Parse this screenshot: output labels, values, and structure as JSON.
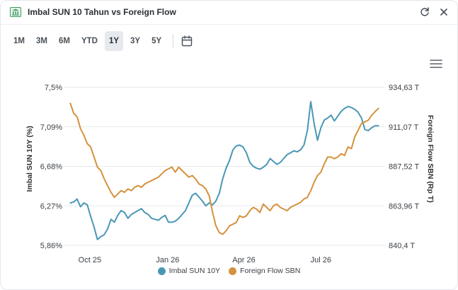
{
  "widget": {
    "title": "Imbal SUN 10 Tahun vs Foreign Flow"
  },
  "icons": {
    "app": "bank-icon",
    "refresh": "refresh-icon",
    "close": "close-icon",
    "calendar": "calendar-icon",
    "menu": "hamburger-menu-icon"
  },
  "ranges": [
    {
      "label": "1M",
      "active": false
    },
    {
      "label": "3M",
      "active": false
    },
    {
      "label": "6M",
      "active": false
    },
    {
      "label": "YTD",
      "active": false
    },
    {
      "label": "1Y",
      "active": true
    },
    {
      "label": "3Y",
      "active": false
    },
    {
      "label": "5Y",
      "active": false
    }
  ],
  "colors": {
    "yield": "#4a97b5",
    "flow": "#d5923d",
    "grid": "#e6e8eb"
  },
  "chart_data": {
    "type": "line",
    "grid": true,
    "legend_position": "bottom-center",
    "x_ticks": [
      "Oct 25",
      "Jan 26",
      "Apr 26",
      "Jul 26"
    ],
    "y_left": {
      "label": "Imbal SUN 10Y (%)",
      "ticks": [
        "7,5%",
        "7,09%",
        "6,68%",
        "6,27%",
        "5,86%"
      ],
      "range": [
        5.86,
        7.5
      ]
    },
    "y_right": {
      "label": "Foreign Flow SBN (Rp T)",
      "ticks": [
        "934,63 T",
        "911,07 T",
        "887,52 T",
        "863,96 T",
        "840,4 T"
      ],
      "range": [
        840.4,
        934.63
      ]
    },
    "series": [
      {
        "name": "Imbal SUN 10Y",
        "axis": "left",
        "x": [
          "2025-09-22",
          "2025-09-26",
          "2025-09-30",
          "2025-10-04",
          "2025-10-08",
          "2025-10-12",
          "2025-10-16",
          "2025-10-20",
          "2025-10-24",
          "2025-10-28",
          "2025-11-01",
          "2025-11-05",
          "2025-11-09",
          "2025-11-13",
          "2025-11-17",
          "2025-11-21",
          "2025-11-25",
          "2025-11-29",
          "2025-12-03",
          "2025-12-07",
          "2025-12-11",
          "2025-12-15",
          "2025-12-19",
          "2025-12-23",
          "2025-12-27",
          "2025-12-31",
          "2026-01-04",
          "2026-01-08",
          "2026-01-12",
          "2026-01-16",
          "2026-01-20",
          "2026-01-24",
          "2026-01-28",
          "2026-02-01",
          "2026-02-05",
          "2026-02-09",
          "2026-02-13",
          "2026-02-17",
          "2026-02-21",
          "2026-02-25",
          "2026-03-01",
          "2026-03-05",
          "2026-03-09",
          "2026-03-13",
          "2026-03-17",
          "2026-03-21",
          "2026-03-25",
          "2026-03-29",
          "2026-04-02",
          "2026-04-06",
          "2026-04-10",
          "2026-04-14",
          "2026-04-18",
          "2026-04-22",
          "2026-04-26",
          "2026-04-30",
          "2026-05-04",
          "2026-05-08",
          "2026-05-12",
          "2026-05-16",
          "2026-05-20",
          "2026-05-24",
          "2026-05-28",
          "2026-06-01",
          "2026-06-05",
          "2026-06-09",
          "2026-06-13",
          "2026-06-17",
          "2026-06-21",
          "2026-06-25",
          "2026-06-29",
          "2026-07-03",
          "2026-07-07",
          "2026-07-11",
          "2026-07-15",
          "2026-07-19",
          "2026-07-23",
          "2026-07-27",
          "2026-07-31",
          "2026-08-04",
          "2026-08-08",
          "2026-08-12",
          "2026-08-16",
          "2026-08-20",
          "2026-08-24",
          "2026-08-28",
          "2026-09-01",
          "2026-09-05",
          "2026-09-09",
          "2026-09-13",
          "2026-09-17",
          "2026-09-21"
        ],
        "values": [
          6.3,
          6.31,
          6.34,
          6.26,
          6.3,
          6.28,
          6.16,
          6.05,
          5.92,
          5.95,
          5.97,
          6.03,
          6.13,
          6.1,
          6.17,
          6.22,
          6.2,
          6.14,
          6.18,
          6.2,
          6.22,
          6.24,
          6.2,
          6.18,
          6.14,
          6.13,
          6.12,
          6.15,
          6.17,
          6.1,
          6.1,
          6.11,
          6.14,
          6.18,
          6.22,
          6.3,
          6.38,
          6.4,
          6.36,
          6.32,
          6.27,
          6.3,
          6.28,
          6.32,
          6.4,
          6.55,
          6.66,
          6.74,
          6.85,
          6.89,
          6.9,
          6.88,
          6.82,
          6.72,
          6.68,
          6.66,
          6.65,
          6.67,
          6.7,
          6.76,
          6.73,
          6.7,
          6.72,
          6.76,
          6.8,
          6.82,
          6.84,
          6.83,
          6.85,
          6.9,
          7.05,
          7.35,
          7.12,
          6.95,
          7.08,
          7.16,
          7.18,
          7.21,
          7.15,
          7.2,
          7.25,
          7.28,
          7.3,
          7.29,
          7.27,
          7.24,
          7.18,
          7.06,
          7.05,
          7.08,
          7.1,
          7.1
        ]
      },
      {
        "name": "Foreign Flow SBN",
        "axis": "right",
        "x": [
          "2025-09-22",
          "2025-09-26",
          "2025-09-30",
          "2025-10-04",
          "2025-10-08",
          "2025-10-12",
          "2025-10-16",
          "2025-10-20",
          "2025-10-24",
          "2025-10-28",
          "2025-11-01",
          "2025-11-05",
          "2025-11-09",
          "2025-11-13",
          "2025-11-17",
          "2025-11-21",
          "2025-11-25",
          "2025-11-29",
          "2025-12-03",
          "2025-12-07",
          "2025-12-11",
          "2025-12-15",
          "2025-12-19",
          "2025-12-23",
          "2025-12-27",
          "2025-12-31",
          "2026-01-04",
          "2026-01-08",
          "2026-01-12",
          "2026-01-16",
          "2026-01-20",
          "2026-01-24",
          "2026-01-28",
          "2026-02-01",
          "2026-02-05",
          "2026-02-09",
          "2026-02-13",
          "2026-02-17",
          "2026-02-21",
          "2026-02-25",
          "2026-03-01",
          "2026-03-05",
          "2026-03-09",
          "2026-03-13",
          "2026-03-17",
          "2026-03-21",
          "2026-03-25",
          "2026-03-29",
          "2026-04-02",
          "2026-04-06",
          "2026-04-10",
          "2026-04-14",
          "2026-04-18",
          "2026-04-22",
          "2026-04-26",
          "2026-04-30",
          "2026-05-04",
          "2026-05-08",
          "2026-05-12",
          "2026-05-16",
          "2026-05-20",
          "2026-05-24",
          "2026-05-28",
          "2026-06-01",
          "2026-06-05",
          "2026-06-09",
          "2026-06-13",
          "2026-06-17",
          "2026-06-21",
          "2026-06-25",
          "2026-06-29",
          "2026-07-03",
          "2026-07-07",
          "2026-07-11",
          "2026-07-15",
          "2026-07-19",
          "2026-07-23",
          "2026-07-27",
          "2026-07-31",
          "2026-08-04",
          "2026-08-08",
          "2026-08-12",
          "2026-08-16",
          "2026-08-20",
          "2026-08-24",
          "2026-08-28",
          "2026-09-01",
          "2026-09-05",
          "2026-09-09",
          "2026-09-13",
          "2026-09-17",
          "2026-09-21"
        ],
        "values": [
          925,
          919,
          917,
          910,
          906,
          901,
          899,
          893,
          887,
          885,
          880,
          876,
          872,
          869,
          871,
          873,
          872,
          874,
          873,
          875,
          876,
          875,
          877,
          878,
          879,
          880,
          881,
          883,
          885,
          886,
          887,
          884,
          887,
          885,
          883,
          881,
          882,
          880,
          877,
          876,
          874,
          870,
          860,
          852,
          848,
          847,
          849,
          852,
          853,
          854,
          858,
          857,
          858,
          861,
          863,
          862,
          860,
          865,
          863,
          861,
          864,
          865,
          863,
          862,
          861,
          863,
          864,
          865,
          866,
          868,
          869,
          873,
          878,
          882,
          884,
          889,
          893,
          893,
          892,
          893,
          895,
          894,
          899,
          898,
          905,
          909,
          913,
          914,
          915,
          918,
          920,
          922
        ]
      }
    ]
  }
}
